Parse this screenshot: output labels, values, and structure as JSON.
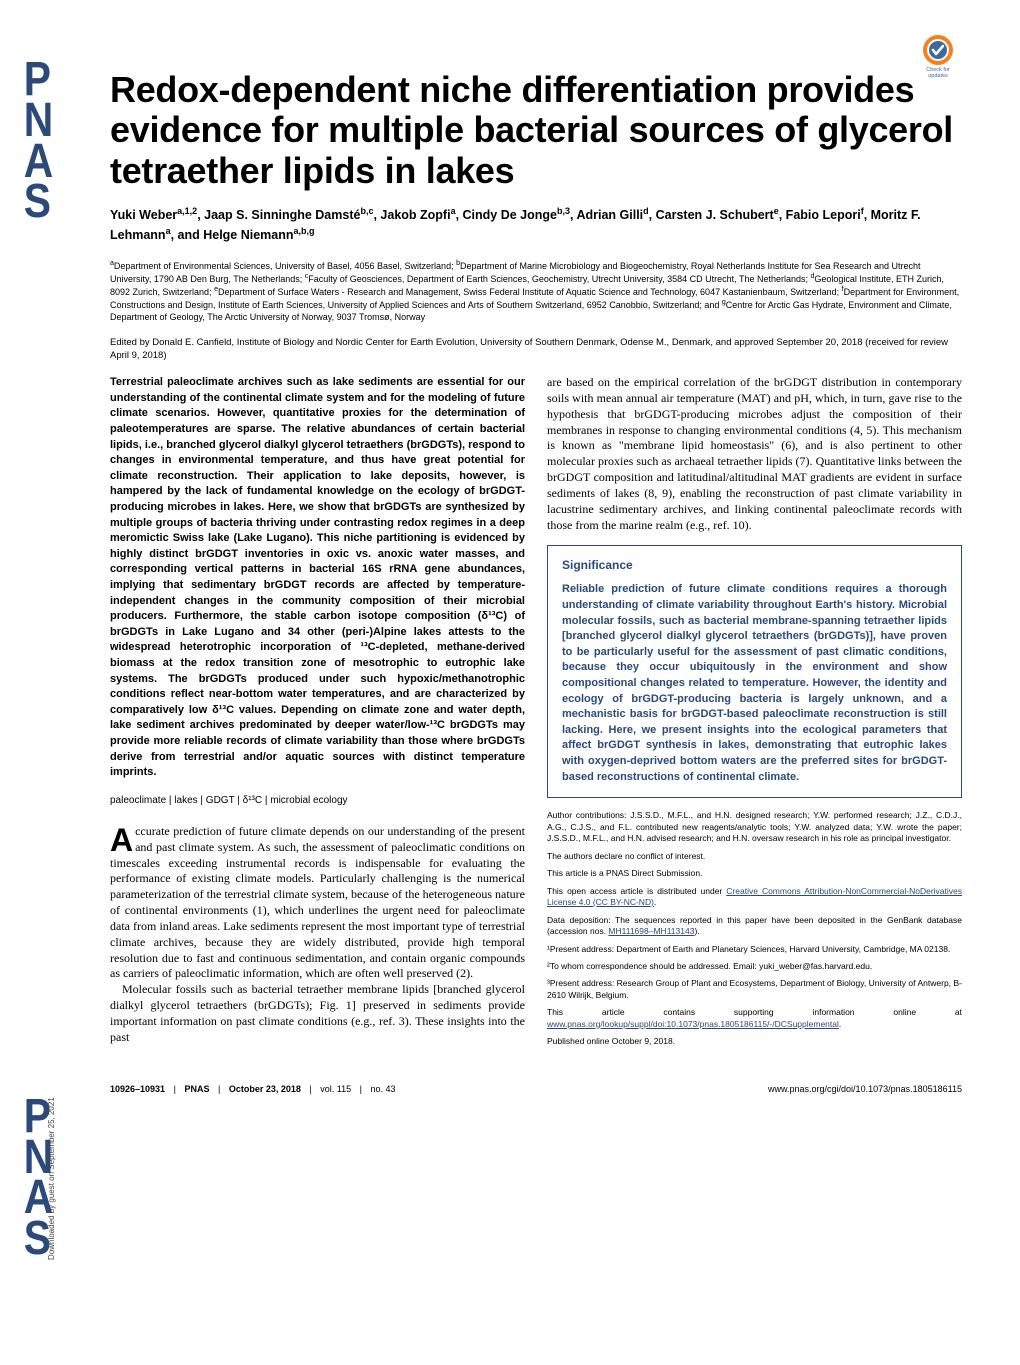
{
  "badge": {
    "label": "Check for updates"
  },
  "sidebar": {
    "letters": [
      "P",
      "N",
      "A",
      "S",
      "P",
      "N",
      "A",
      "S"
    ],
    "downloaded": "Downloaded by guest on September 25, 2021"
  },
  "title": "Redox-dependent niche differentiation provides evidence for multiple bacterial sources of glycerol tetraether lipids in lakes",
  "authors_html": "Yuki Weber<sup>a,1,2</sup>, Jaap S. Sinninghe Damsté<sup>b,c</sup>, Jakob Zopfi<sup>a</sup>, Cindy De Jonge<sup>b,3</sup>, Adrian Gilli<sup>d</sup>, Carsten J. Schubert<sup>e</sup>, Fabio Lepori<sup>f</sup>, Moritz F. Lehmann<sup>a</sup>, and Helge Niemann<sup>a,b,g</sup>",
  "affiliations_html": "<sup>a</sup>Department of Environmental Sciences, University of Basel, 4056 Basel, Switzerland; <sup>b</sup>Department of Marine Microbiology and Biogeochemistry, Royal Netherlands Institute for Sea Research and Utrecht University, 1790 AB Den Burg, The Netherlands; <sup>c</sup>Faculty of Geosciences, Department of Earth Sciences, Geochemistry, Utrecht University, 3584 CD Utrecht, The Netherlands; <sup>d</sup>Geological Institute, ETH Zurich, 8092 Zurich, Switzerland; <sup>e</sup>Department of Surface Waters - Research and Management, Swiss Federal Institute of Aquatic Science and Technology, 6047 Kastanienbaum, Switzerland; <sup>f</sup>Department for Environment, Constructions and Design, Institute of Earth Sciences, University of Applied Sciences and Arts of Southern Switzerland, 6952 Canobbio, Switzerland; and <sup>g</sup>Centre for Arctic Gas Hydrate, Environment and Climate, Department of Geology, The Arctic University of Norway, 9037 Tromsø, Norway",
  "edited": "Edited by Donald E. Canfield, Institute of Biology and Nordic Center for Earth Evolution, University of Southern Denmark, Odense M., Denmark, and approved September 20, 2018 (received for review April 9, 2018)",
  "abstract": "Terrestrial paleoclimate archives such as lake sediments are essential for our understanding of the continental climate system and for the modeling of future climate scenarios. However, quantitative proxies for the determination of paleotemperatures are sparse. The relative abundances of certain bacterial lipids, i.e., branched glycerol dialkyl glycerol tetraethers (brGDGTs), respond to changes in environmental temperature, and thus have great potential for climate reconstruction. Their application to lake deposits, however, is hampered by the lack of fundamental knowledge on the ecology of brGDGT-producing microbes in lakes. Here, we show that brGDGTs are synthesized by multiple groups of bacteria thriving under contrasting redox regimes in a deep meromictic Swiss lake (Lake Lugano). This niche partitioning is evidenced by highly distinct brGDGT inventories in oxic vs. anoxic water masses, and corresponding vertical patterns in bacterial 16S rRNA gene abundances, implying that sedimentary brGDGT records are affected by temperature-independent changes in the community composition of their microbial producers. Furthermore, the stable carbon isotope composition (δ¹³C) of brGDGTs in Lake Lugano and 34 other (peri-)Alpine lakes attests to the widespread heterotrophic incorporation of ¹³C-depleted, methane-derived biomass at the redox transition zone of mesotrophic to eutrophic lake systems. The brGDGTs produced under such hypoxic/methanotrophic conditions reflect near-bottom water temperatures, and are characterized by comparatively low δ¹³C values. Depending on climate zone and water depth, lake sediment archives predominated by deeper water/low-¹³C brGDGTs may provide more reliable records of climate variability than those where brGDGTs derive from terrestrial and/or aquatic sources with distinct temperature imprints.",
  "keywords": "paleoclimate | lakes | GDGT | δ¹³C | microbial ecology",
  "body_left": {
    "p1_first": "A",
    "p1_rest": "ccurate prediction of future climate depends on our understanding of the present and past climate system. As such, the assessment of paleoclimatic conditions on timescales exceeding instrumental records is indispensable for evaluating the performance of existing climate models. Particularly challenging is the numerical parameterization of the terrestrial climate system, because of the heterogeneous nature of continental environments (1), which underlines the urgent need for paleoclimate data from inland areas. Lake sediments represent the most important type of terrestrial climate archives, because they are widely distributed, provide high temporal resolution due to fast and continuous sedimentation, and contain organic compounds as carriers of paleoclimatic information, which are often well preserved (2).",
    "p2": "Molecular fossils such as bacterial tetraether membrane lipids [branched glycerol dialkyl glycerol tetraethers (brGDGTs); Fig. 1] preserved in sediments provide important information on past climate conditions (e.g., ref. 3). These insights into the past"
  },
  "body_right": {
    "p1": "are based on the empirical correlation of the brGDGT distribution in contemporary soils with mean annual air temperature (MAT) and pH, which, in turn, gave rise to the hypothesis that brGDGT-producing microbes adjust the composition of their membranes in response to changing environmental conditions (4, 5). This mechanism is known as \"membrane lipid homeostasis\" (6), and is also pertinent to other molecular proxies such as archaeal tetraether lipids (7). Quantitative links between the brGDGT composition and latitudinal/altitudinal MAT gradients are evident in surface sediments of lakes (8, 9), enabling the reconstruction of past climate variability in lacustrine sedimentary archives, and linking continental paleoclimate records with those from the marine realm (e.g., ref. 10)."
  },
  "significance": {
    "title": "Significance",
    "body": "Reliable prediction of future climate conditions requires a thorough understanding of climate variability throughout Earth's history. Microbial molecular fossils, such as bacterial membrane-spanning tetraether lipids [branched glycerol dialkyl glycerol tetraethers (brGDGTs)], have proven to be particularly useful for the assessment of past climatic conditions, because they occur ubiquitously in the environment and show compositional changes related to temperature. However, the identity and ecology of brGDGT-producing bacteria is largely unknown, and a mechanistic basis for brGDGT-based paleoclimate reconstruction is still lacking. Here, we present insights into the ecological parameters that affect brGDGT synthesis in lakes, demonstrating that eutrophic lakes with oxygen-deprived bottom waters are the preferred sites for brGDGT-based reconstructions of continental climate."
  },
  "meta": {
    "contributions": "Author contributions: J.S.S.D., M.F.L., and H.N. designed research; Y.W. performed research; J.Z., C.D.J., A.G., C.J.S., and F.L. contributed new reagents/analytic tools; Y.W. analyzed data; Y.W. wrote the paper; J.S.S.D., M.F.L., and H.N. advised research; and H.N. oversaw research in his role as principal investigator.",
    "conflict": "The authors declare no conflict of interest.",
    "submission": "This article is a PNAS Direct Submission.",
    "license_pre": "This open access article is distributed under ",
    "license_link": "Creative Commons Attribution-NonCommercial-NoDerivatives License 4.0 (CC BY-NC-ND)",
    "deposition_pre": "Data deposition: The sequences reported in this paper have been deposited in the GenBank database (accession nos. ",
    "deposition_link": "MH111698–MH113143",
    "deposition_post": ").",
    "n1": "¹Present address: Department of Earth and Planetary Sciences, Harvard University, Cambridge, MA 02138.",
    "n2": "²To whom correspondence should be addressed. Email: yuki_weber@fas.harvard.edu.",
    "n3": "³Present address: Research Group of Plant and Ecosystems, Department of Biology, University of Antwerp, B-2610 Wilrijk, Belgium.",
    "supp_pre": "This article contains supporting information online at ",
    "supp_link": "www.pnas.org/lookup/suppl/doi:10.1073/pnas.1805186115/-/DCSupplemental",
    "published": "Published online October 9, 2018."
  },
  "footer": {
    "pages": "10926–10931",
    "journal": "PNAS",
    "date": "October 23, 2018",
    "vol": "vol. 115",
    "no": "no. 43",
    "doi": "www.pnas.org/cgi/doi/10.1073/pnas.1805186115"
  },
  "colors": {
    "brand": "#2b4a7a",
    "text": "#000000",
    "badge_orange": "#f58220",
    "badge_blue": "#3b6aa0"
  },
  "typography": {
    "title_pt": 36,
    "authors_pt": 12.5,
    "aff_pt": 9,
    "abstract_pt": 11,
    "body_pt": 12,
    "meta_pt": 8.5,
    "footer_pt": 9
  }
}
